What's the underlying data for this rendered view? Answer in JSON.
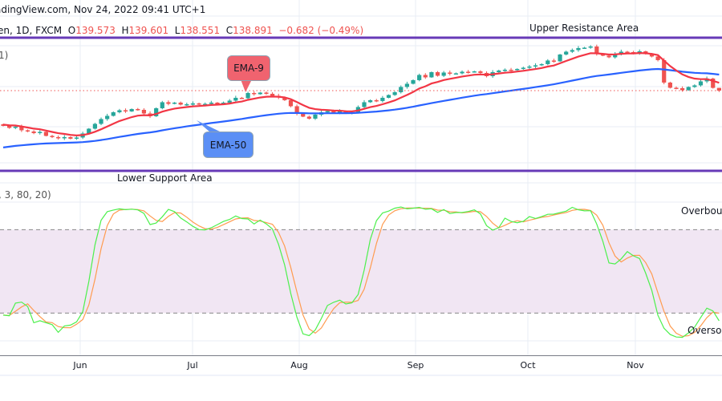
{
  "header": {
    "source_line": "adingView.com, Nov 24, 2022 09:41 UTC+1",
    "symbol_line": "en, 1D, FXCM",
    "open_label": "O",
    "open": "139.573",
    "high_label": "H",
    "high": "139.601",
    "low_label": "L",
    "low": "138.551",
    "close_label": "C",
    "close": "138.891",
    "change": "−0.682 (−0.49%)"
  },
  "price_pane": {
    "indicator_fragment": "1)",
    "upper_zone_label": "Upper Resistance Area",
    "lower_zone_label": "Lower Support Area",
    "ema_fast_label": "EMA-9",
    "ema_slow_label": "EMA-50"
  },
  "stoch_pane": {
    "indicator_fragment": ", 3, 80, 20)",
    "overbought_label": "Overboug",
    "oversold_label": "Oversol",
    "overbought_level": 80,
    "oversold_level": 20
  },
  "colors": {
    "up": "#26a69a",
    "down": "#ef5350",
    "ema_fast": "#f23645",
    "ema_slow": "#2962ff",
    "zone_line": "#673ab7",
    "stoch_k": "#4cf04c",
    "stoch_d": "#ff9b4f",
    "stoch_band": "#f1e6f3",
    "ema_fast_box": "#f0636f",
    "ema_slow_box": "#5b8ff5"
  },
  "chart_data": {
    "type": "candlestick",
    "title": "",
    "x_ticks": [
      "Jun",
      "Jul",
      "Aug",
      "Sep",
      "Oct",
      "Nov"
    ],
    "closes": [
      130.1,
      129.6,
      129.9,
      129.0,
      128.7,
      128.3,
      128.6,
      127.6,
      127.3,
      127.0,
      127.3,
      126.9,
      127.2,
      128.2,
      129.4,
      130.6,
      131.8,
      132.6,
      133.5,
      134.0,
      133.7,
      134.3,
      134.1,
      133.2,
      132.5,
      134.5,
      136.0,
      135.6,
      135.9,
      135.4,
      135.5,
      135.7,
      135.4,
      135.6,
      135.9,
      135.7,
      135.9,
      136.4,
      137.1,
      137.0,
      138.3,
      138.0,
      138.4,
      138.1,
      137.6,
      137.2,
      136.5,
      135.0,
      133.1,
      132.4,
      131.9,
      132.9,
      133.5,
      133.8,
      133.4,
      133.8,
      133.2,
      133.5,
      134.8,
      136.0,
      136.5,
      136.3,
      137.1,
      137.8,
      138.5,
      139.8,
      140.6,
      141.5,
      142.8,
      142.2,
      143.5,
      142.6,
      143.4,
      143.1,
      143.2,
      143.6,
      143.5,
      143.7,
      143.3,
      142.5,
      143.5,
      143.9,
      144.1,
      144.0,
      144.3,
      144.6,
      144.9,
      145.2,
      145.5,
      146.4,
      146.2,
      147.9,
      148.6,
      149.0,
      149.5,
      149.6,
      149.9,
      148.0,
      147.6,
      147.2,
      148.1,
      148.6,
      148.5,
      148.2,
      148.7,
      148.0,
      147.4,
      146.5,
      140.9,
      139.6,
      139.5,
      139.0,
      139.8,
      140.2,
      141.2,
      141.9,
      139.573,
      138.891
    ],
    "last_candle": {
      "open": 139.573,
      "high": 139.601,
      "low": 138.551,
      "close": 138.891
    },
    "overlays": [
      "EMA-9",
      "EMA-50"
    ],
    "stochastic_levels": [
      80,
      20
    ]
  }
}
